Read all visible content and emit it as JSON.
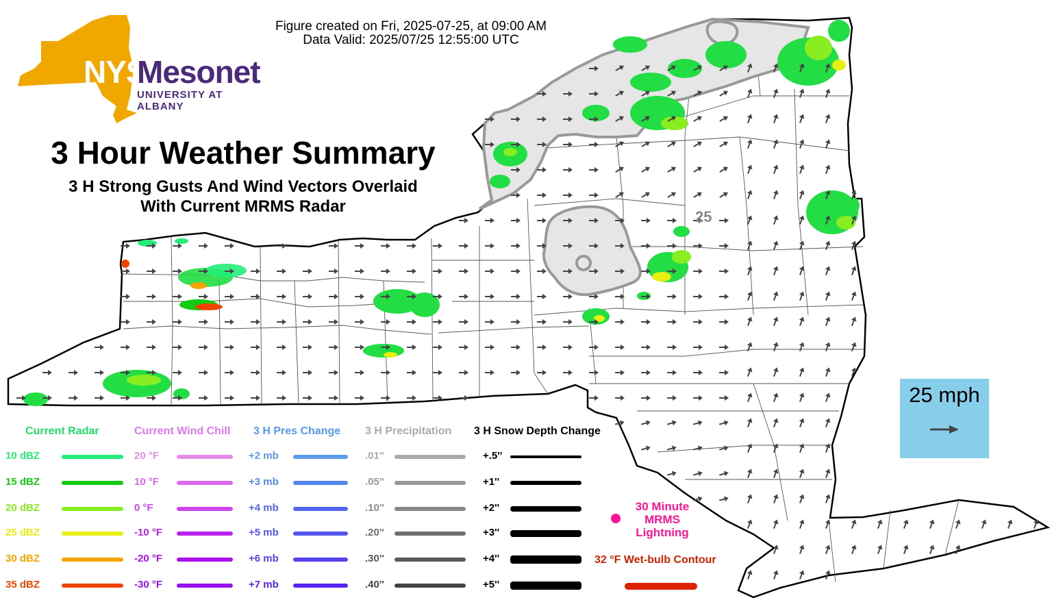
{
  "header": {
    "created": "Figure created on Fri, 2025-07-25, at 09:00 AM",
    "valid": "Data Valid: 2025/07/25 12:55:00 UTC"
  },
  "logo": {
    "nys": "NYS",
    "mesonet": "Mesonet",
    "university": "UNIVERSITY AT ALBANY"
  },
  "title": "3 Hour Weather Summary",
  "subtitle_line1": "3 H Strong Gusts And Wind Vectors Overlaid",
  "subtitle_line2": "With Current MRMS Radar",
  "contour_label": "25",
  "scale": {
    "label": "25 mph"
  },
  "legend": {
    "radar": {
      "title": "Current Radar",
      "title_color": "#22dd66",
      "items": [
        {
          "label": "10 dBZ",
          "color": "#22ee77"
        },
        {
          "label": "15 dBZ",
          "color": "#11cc11"
        },
        {
          "label": "20 dBZ",
          "color": "#88ee22"
        },
        {
          "label": "25 dBZ",
          "color": "#e8ee11"
        },
        {
          "label": "30 dBZ",
          "color": "#f5a500"
        },
        {
          "label": "35 dBZ",
          "color": "#ee4400"
        }
      ]
    },
    "windchill": {
      "title": "Current Wind Chill",
      "title_color": "#dd77ee",
      "items": [
        {
          "label": "20 °F",
          "color": "#e58ae8"
        },
        {
          "label": "10 °F",
          "color": "#dd66ee"
        },
        {
          "label": "0 °F",
          "color": "#cc44ee"
        },
        {
          "label": "-10 °F",
          "color": "#bb22ee"
        },
        {
          "label": "-20 °F",
          "color": "#aa11ee"
        },
        {
          "label": "-30 °F",
          "color": "#9911ee"
        }
      ]
    },
    "pressure": {
      "title": "3 H Pres Change",
      "title_color": "#5599ee",
      "items": [
        {
          "label": "+2 mb",
          "color": "#5a9ae8"
        },
        {
          "label": "+3 mb",
          "color": "#5588ee"
        },
        {
          "label": "+4 mb",
          "color": "#5566ee"
        },
        {
          "label": "+5 mb",
          "color": "#5555ee"
        },
        {
          "label": "+6 mb",
          "color": "#5544ee"
        },
        {
          "label": "+7 mb",
          "color": "#5522ee"
        }
      ]
    },
    "precip": {
      "title": "3 H Precipitation",
      "title_color": "#aaaaaa",
      "items": [
        {
          "label": ".01''",
          "color": "#aaaaaa"
        },
        {
          "label": ".05''",
          "color": "#999999"
        },
        {
          "label": ".10''",
          "color": "#888888"
        },
        {
          "label": ".20''",
          "color": "#6e6e6e"
        },
        {
          "label": ".30''",
          "color": "#5a5a5a"
        },
        {
          "label": ".40''",
          "color": "#444444"
        }
      ]
    },
    "snow": {
      "title": "3 H Snow Depth Change",
      "title_color": "#000000",
      "items": [
        {
          "label": "+.5''",
          "color": "#000000"
        },
        {
          "label": "+1''",
          "color": "#000000"
        },
        {
          "label": "+2''",
          "color": "#000000"
        },
        {
          "label": "+3''",
          "color": "#000000"
        },
        {
          "label": "+4''",
          "color": "#000000"
        },
        {
          "label": "+5''",
          "color": "#000000"
        }
      ]
    }
  },
  "lightning_label": "30 Minute MRMS Lightning",
  "lightning_color": "#ff1493",
  "wetbulb_label": "32 °F Wet-bulb Contour",
  "wetbulb_color": "#dd2200",
  "map_colors": {
    "state_fill": "#ffffff",
    "outline": "#000000",
    "county_lines": "#555555",
    "gust_fill": "#e6e6e6",
    "gust_outline": "#999999",
    "arrow": "#444444",
    "logo_gold": "#f0a800",
    "logo_purple": "#4b2a7b",
    "scale_box": "#87ceeb"
  }
}
